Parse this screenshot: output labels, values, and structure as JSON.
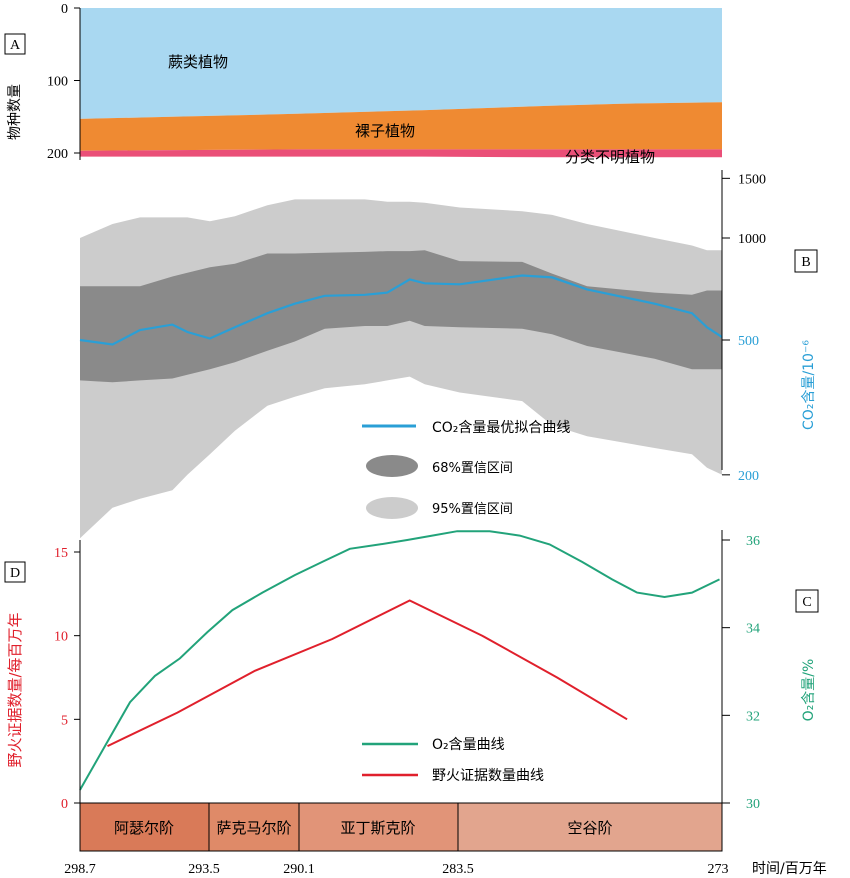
{
  "colors": {
    "ferns": "#a9d8f1",
    "gymno": "#ef8a32",
    "unknown": "#ea4f78",
    "ci68": "#8a8a8a",
    "ci95": "#cccccc",
    "co2": "#2a9fd6",
    "o2": "#22a37a",
    "fire": "#e0202c",
    "stage1": "#d97a58",
    "stage2": "#df8a68",
    "stage3": "#e19478",
    "stage4": "#e2a58e"
  },
  "time_axis": {
    "label": "时间/百万年",
    "ticks": [
      "298.7",
      "293.5",
      "290.1",
      "283.5",
      "273"
    ]
  },
  "stages": [
    "阿瑟尔阶",
    "萨克马尔阶",
    "亚丁斯克阶",
    "空谷阶"
  ],
  "chart_data": [
    {
      "panel": "A",
      "type": "area",
      "ylabel": "物种数量",
      "y_ticks": [
        "0",
        "100",
        "200"
      ],
      "ylim": [
        0,
        210
      ],
      "x": [
        298.7,
        295,
        290,
        285,
        280,
        277,
        273
      ],
      "series": [
        {
          "name": "蕨类植物",
          "values": [
            153,
            150,
            146,
            141,
            135,
            132,
            130
          ]
        },
        {
          "name": "裸子植物",
          "values": [
            44,
            46,
            49,
            54,
            60,
            63,
            65
          ]
        },
        {
          "name": "分类不明植物",
          "values": [
            8,
            9,
            10,
            10,
            11,
            11,
            11
          ]
        }
      ]
    },
    {
      "panel": "B",
      "type": "line",
      "ylabel": "CO₂含量/10⁻⁶",
      "y_scale": "log",
      "y_ticks": [
        "1500",
        "1000",
        "500",
        "200"
      ],
      "ylim": [
        120,
        1700
      ],
      "x": [
        298.7,
        297.4,
        296.3,
        295,
        294.4,
        293.5,
        292.5,
        291.2,
        290.1,
        288.9,
        287.3,
        286.4,
        285.5,
        284.9,
        283.5,
        281,
        279.8,
        278.4,
        275.7,
        274.2,
        273.6,
        273
      ],
      "series": [
        {
          "name": "CO₂含量最优拟合曲线",
          "values": [
            500,
            485,
            535,
            555,
            528,
            505,
            545,
            600,
            640,
            675,
            680,
            690,
            755,
            735,
            730,
            775,
            765,
            705,
            640,
            600,
            545,
            510
          ]
        }
      ],
      "ci68": {
        "name": "68%置信区间",
        "upper": [
          720,
          720,
          720,
          770,
          790,
          820,
          840,
          900,
          900,
          905,
          910,
          915,
          915,
          920,
          855,
          850,
          785,
          720,
          690,
          680,
          700,
          700
        ],
        "lower": [
          380,
          375,
          380,
          385,
          395,
          410,
          430,
          465,
          495,
          540,
          550,
          550,
          570,
          550,
          545,
          540,
          520,
          480,
          440,
          410,
          410,
          410
        ]
      },
      "ci95": {
        "name": "95%置信区间",
        "upper": [
          1000,
          1100,
          1150,
          1150,
          1150,
          1120,
          1160,
          1250,
          1300,
          1300,
          1300,
          1280,
          1280,
          1270,
          1230,
          1200,
          1170,
          1100,
          1000,
          950,
          920,
          920
        ],
        "lower": [
          130,
          160,
          170,
          180,
          200,
          230,
          270,
          320,
          340,
          360,
          370,
          380,
          390,
          370,
          350,
          330,
          280,
          260,
          240,
          230,
          210,
          200
        ]
      }
    },
    {
      "panel": "C",
      "type": "line",
      "ylabel": "O₂含量/%",
      "y_ticks": [
        "30",
        "32",
        "34",
        "36"
      ],
      "ylim": [
        30,
        36.6
      ],
      "x": [
        298.7,
        297.7,
        296.7,
        295.7,
        294.7,
        293.6,
        292.6,
        291.4,
        290.1,
        289.0,
        287.9,
        286.7,
        285.6,
        284.6,
        283.6,
        282.3,
        281.1,
        279.9,
        278.6,
        277.4,
        276.4,
        275.3,
        274.2,
        273.1
      ],
      "series": [
        {
          "name": "O₂含量曲线",
          "values": [
            30.3,
            31.3,
            32.3,
            32.9,
            33.3,
            33.9,
            34.4,
            34.8,
            35.2,
            35.5,
            35.8,
            35.9,
            36.0,
            36.1,
            36.2,
            36.2,
            36.1,
            35.9,
            35.5,
            35.1,
            34.8,
            34.7,
            34.8,
            35.1
          ]
        }
      ]
    },
    {
      "panel": "D",
      "type": "line",
      "ylabel": "野火证据数量/每百万年",
      "y_ticks": [
        "0",
        "5",
        "10",
        "15"
      ],
      "ylim": [
        0,
        16
      ],
      "x": [
        297.6,
        294.8,
        291.7,
        288.6,
        285.5,
        282.6,
        279.6,
        276.8
      ],
      "series": [
        {
          "name": "野火证据数量曲线",
          "values": [
            3.4,
            5.4,
            7.9,
            9.8,
            12.1,
            10.0,
            7.5,
            5.0
          ]
        }
      ]
    }
  ]
}
